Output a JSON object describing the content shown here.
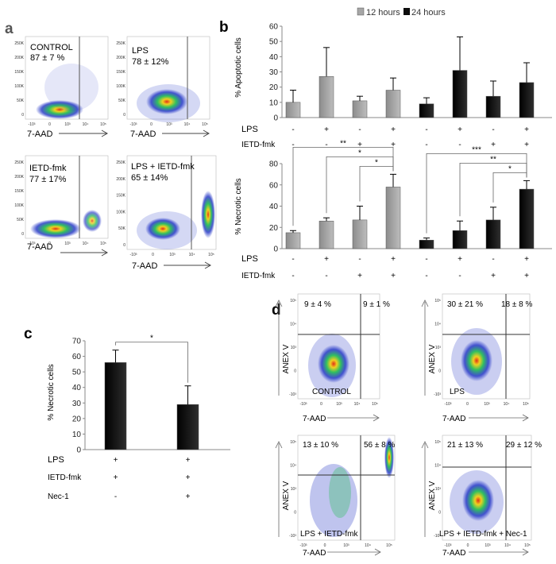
{
  "panel_letters": {
    "a": "a",
    "b": "b",
    "c": "c",
    "d": "d"
  },
  "legend": {
    "series1": "12 hours",
    "series2": "24 hours"
  },
  "colors": {
    "gray": "#a6a6a6",
    "black": "#0d0d0d",
    "flow_low": "#2a3cc8",
    "flow_mid": "#30c060",
    "flow_high": "#f0d020",
    "flow_peak": "#e03018"
  },
  "panel_a": {
    "xlabel": "7-AAD",
    "plots": [
      {
        "name": "CONTROL",
        "stat": "87 ± 7 %"
      },
      {
        "name": "LPS",
        "stat": "78 ± 12%"
      },
      {
        "name": "IETD-fmk",
        "stat": "77 ± 17%"
      },
      {
        "name": "LPS + IETD-fmk",
        "stat": "65 ± 14%"
      }
    ],
    "yticks": [
      "250K",
      "200K",
      "150K",
      "100K",
      "50K",
      "0"
    ],
    "xticks": [
      "-10³",
      "0",
      "10³",
      "10⁴",
      "10⁵"
    ]
  },
  "panel_d": {
    "xlabel": "7-AAD",
    "ylabel": "ANEX V",
    "plots": [
      {
        "name": "CONTROL",
        "q_upper_left": "9 ± 4 %",
        "q_upper_right": "9 ± 1 %"
      },
      {
        "name": "LPS",
        "q_upper_left": "30 ± 21 %",
        "q_upper_right": "18 ± 8 %"
      },
      {
        "name": "LPS + IETD-fmk",
        "q_upper_left": "13 ± 10 %",
        "q_upper_right": "56 ± 8 %"
      },
      {
        "name": "LPS + IETD-fmk  + Nec-1",
        "q_upper_left": "21 ± 13 %",
        "q_upper_right": "29 ± 12 %"
      }
    ],
    "yticks": [
      "10⁵",
      "10⁴",
      "10³",
      "0",
      "-10³"
    ],
    "xticks": [
      "-10³",
      "0",
      "10³",
      "10⁴",
      "10⁵"
    ]
  },
  "chart_data": [
    {
      "id": "b-top",
      "type": "bar",
      "ylabel": "% Apoptotic cells",
      "ylim": [
        0,
        60
      ],
      "yticks": [
        0,
        10,
        20,
        30,
        40,
        50,
        60
      ],
      "series_colors": [
        "gray",
        "gray",
        "gray",
        "gray",
        "black",
        "black",
        "black",
        "black"
      ],
      "values": [
        10,
        27,
        11,
        18,
        9,
        31,
        14,
        23
      ],
      "errors": [
        8,
        19,
        3,
        8,
        4,
        22,
        10,
        13
      ],
      "row_labels": [
        "LPS",
        "IETD-fmk"
      ],
      "rows": [
        [
          "-",
          "+",
          "-",
          "+",
          "-",
          "+",
          "-",
          "+"
        ],
        [
          "-",
          "-",
          "+",
          "+",
          "-",
          "-",
          "+",
          "+"
        ]
      ]
    },
    {
      "id": "b-bottom",
      "type": "bar",
      "ylabel": "% Necrotic cells",
      "ylim": [
        0,
        80
      ],
      "yticks": [
        0,
        20,
        40,
        60,
        80
      ],
      "series_colors": [
        "gray",
        "gray",
        "gray",
        "gray",
        "black",
        "black",
        "black",
        "black"
      ],
      "values": [
        15,
        26,
        27,
        58,
        8,
        17,
        27,
        56
      ],
      "errors": [
        2,
        3,
        13,
        12,
        2,
        9,
        12,
        8
      ],
      "row_labels": [
        "LPS",
        "IETD-fmk"
      ],
      "rows": [
        [
          "-",
          "+",
          "-",
          "+",
          "-",
          "+",
          "-",
          "+"
        ],
        [
          "-",
          "-",
          "+",
          "+",
          "-",
          "-",
          "+",
          "+"
        ]
      ],
      "significance": [
        {
          "from": 0,
          "to": 3,
          "label": "**"
        },
        {
          "from": 1,
          "to": 3,
          "label": "*"
        },
        {
          "from": 2,
          "to": 3,
          "label": "*"
        },
        {
          "from": 4,
          "to": 7,
          "label": "***"
        },
        {
          "from": 5,
          "to": 7,
          "label": "**"
        },
        {
          "from": 6,
          "to": 7,
          "label": "*"
        }
      ]
    },
    {
      "id": "c",
      "type": "bar",
      "ylabel": "% Necrotic cells",
      "ylim": [
        0,
        70
      ],
      "yticks": [
        0,
        10,
        20,
        30,
        40,
        50,
        60,
        70
      ],
      "series_colors": [
        "black",
        "black"
      ],
      "values": [
        56,
        29
      ],
      "errors": [
        8,
        12
      ],
      "row_labels": [
        "LPS",
        "IETD-fmk",
        "Nec-1"
      ],
      "rows": [
        [
          "+",
          "+"
        ],
        [
          "+",
          "+"
        ],
        [
          "-",
          "+"
        ]
      ],
      "significance": [
        {
          "from": 0,
          "to": 1,
          "label": "*"
        }
      ]
    }
  ]
}
